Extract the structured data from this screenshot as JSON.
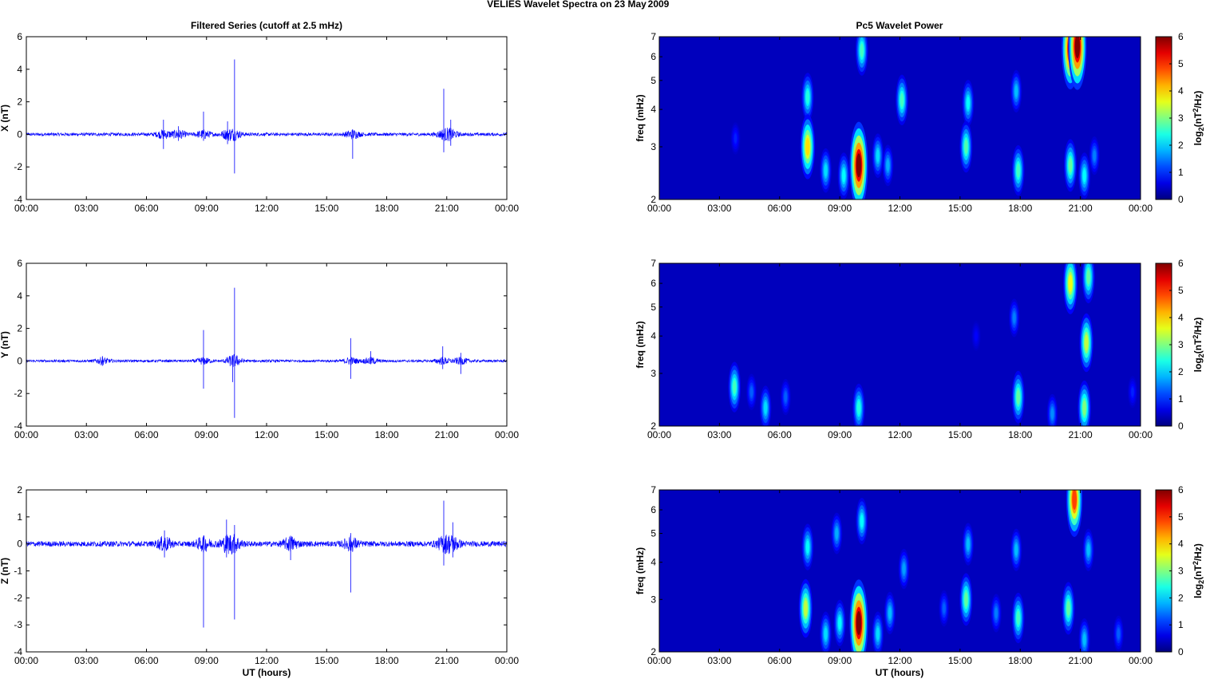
{
  "figure": {
    "title": "VELIES Wavelet Spectra on 23 May",
    "year": "2009",
    "left_title": "Filtered Series (cutoff at 2.5 mHz)",
    "right_title": "Pc5 Wavelet Power",
    "xlabel": "UT (hours)",
    "freq_label": "freq (mHz)",
    "cbar_label_base": "log",
    "cbar_label_sub": "2",
    "cbar_label_rest": "(nT",
    "cbar_label_sup": "2",
    "cbar_label_end": "/Hz)"
  },
  "colors": {
    "line": "#0000ff",
    "axis": "#000000",
    "background_power": "#00008f"
  },
  "chart_data": [
    {
      "type": "line",
      "panel": "X filtered series",
      "ylabel": "X (nT)",
      "xlim": [
        0,
        24
      ],
      "ylim": [
        -4,
        6
      ],
      "xticks": [
        "00:00",
        "03:00",
        "06:00",
        "09:00",
        "12:00",
        "15:00",
        "18:00",
        "21:00",
        "00:00"
      ],
      "yticks": [
        -4,
        -2,
        0,
        2,
        4,
        6
      ],
      "series": [
        {
          "baseline_amplitude": 0.1,
          "events": [
            {
              "t": 6.85,
              "min": -0.9,
              "max": 0.9
            },
            {
              "t": 7.6,
              "min": -0.4,
              "max": 0.5
            },
            {
              "t": 8.85,
              "min": -0.4,
              "max": 1.4
            },
            {
              "t": 10.05,
              "min": -0.6,
              "max": 0.8
            },
            {
              "t": 10.4,
              "min": -2.4,
              "max": 4.6
            },
            {
              "t": 16.3,
              "min": -1.5,
              "max": 0.3
            },
            {
              "t": 20.85,
              "min": -1.1,
              "max": 2.8
            },
            {
              "t": 21.2,
              "min": -0.7,
              "max": 0.9
            }
          ]
        }
      ]
    },
    {
      "type": "line",
      "panel": "Y filtered series",
      "ylabel": "Y (nT)",
      "xlim": [
        0,
        24
      ],
      "ylim": [
        -4,
        6
      ],
      "xticks": [
        "00:00",
        "03:00",
        "06:00",
        "09:00",
        "12:00",
        "15:00",
        "18:00",
        "21:00",
        "00:00"
      ],
      "yticks": [
        -4,
        -2,
        0,
        2,
        4,
        6
      ],
      "series": [
        {
          "baseline_amplitude": 0.08,
          "events": [
            {
              "t": 3.8,
              "min": -0.3,
              "max": 0.3
            },
            {
              "t": 8.85,
              "min": -1.7,
              "max": 1.9
            },
            {
              "t": 10.3,
              "min": -1.3,
              "max": 0.3
            },
            {
              "t": 10.4,
              "min": -3.5,
              "max": 4.5
            },
            {
              "t": 16.2,
              "min": -1.1,
              "max": 1.4
            },
            {
              "t": 17.2,
              "min": -0.2,
              "max": 0.6
            },
            {
              "t": 20.8,
              "min": -0.5,
              "max": 0.9
            },
            {
              "t": 21.7,
              "min": -0.8,
              "max": 0.5
            }
          ]
        }
      ]
    },
    {
      "type": "line",
      "panel": "Z filtered series",
      "ylabel": "Z (nT)",
      "xlim": [
        0,
        24
      ],
      "ylim": [
        -4,
        2
      ],
      "xticks": [
        "00:00",
        "03:00",
        "06:00",
        "09:00",
        "12:00",
        "15:00",
        "18:00",
        "21:00",
        "00:00"
      ],
      "yticks": [
        -4,
        -3,
        -2,
        -1,
        0,
        1,
        2
      ],
      "series": [
        {
          "baseline_amplitude": 0.1,
          "events": [
            {
              "t": 6.9,
              "min": -0.5,
              "max": 0.5
            },
            {
              "t": 8.85,
              "min": -3.1,
              "max": 0.3
            },
            {
              "t": 10.0,
              "min": -0.5,
              "max": 0.9
            },
            {
              "t": 10.4,
              "min": -2.8,
              "max": 0.7
            },
            {
              "t": 13.2,
              "min": -0.6,
              "max": 0.3
            },
            {
              "t": 16.2,
              "min": -1.8,
              "max": 0.4
            },
            {
              "t": 20.85,
              "min": -0.8,
              "max": 1.6
            },
            {
              "t": 21.3,
              "min": -0.5,
              "max": 0.8
            }
          ]
        }
      ]
    },
    {
      "type": "heatmap",
      "panel": "X wavelet power",
      "ylabel": "freq (mHz)",
      "yscale": "log",
      "xlim": [
        0,
        24
      ],
      "ylim": [
        2,
        7
      ],
      "clim": [
        0,
        6
      ],
      "xticks": [
        "00:00",
        "03:00",
        "06:00",
        "09:00",
        "12:00",
        "15:00",
        "18:00",
        "21:00",
        "00:00"
      ],
      "yticks": [
        2,
        3,
        4,
        5,
        6,
        7
      ],
      "cbar_ticks": [
        0,
        1,
        2,
        3,
        4,
        5,
        6
      ],
      "blobs": [
        {
          "t": 7.4,
          "f": 3.0,
          "p": 3.8
        },
        {
          "t": 7.4,
          "f": 4.4,
          "p": 2.2
        },
        {
          "t": 8.3,
          "f": 2.5,
          "p": 1.8
        },
        {
          "t": 9.2,
          "f": 2.4,
          "p": 2.0
        },
        {
          "t": 9.95,
          "f": 2.6,
          "p": 6.0
        },
        {
          "t": 10.1,
          "f": 6.3,
          "p": 2.4
        },
        {
          "t": 10.9,
          "f": 2.8,
          "p": 1.8
        },
        {
          "t": 11.4,
          "f": 2.6,
          "p": 1.5
        },
        {
          "t": 12.1,
          "f": 4.3,
          "p": 2.4
        },
        {
          "t": 15.3,
          "f": 3.0,
          "p": 2.5
        },
        {
          "t": 15.4,
          "f": 4.2,
          "p": 2.0
        },
        {
          "t": 17.9,
          "f": 2.5,
          "p": 2.4
        },
        {
          "t": 17.8,
          "f": 4.6,
          "p": 1.6
        },
        {
          "t": 20.5,
          "f": 2.6,
          "p": 2.6
        },
        {
          "t": 20.5,
          "f": 6.4,
          "p": 5.5
        },
        {
          "t": 20.85,
          "f": 6.5,
          "p": 6.0
        },
        {
          "t": 21.2,
          "f": 2.4,
          "p": 2.0
        },
        {
          "t": 21.7,
          "f": 2.8,
          "p": 1.2
        },
        {
          "t": 3.8,
          "f": 3.2,
          "p": 0.6
        }
      ]
    },
    {
      "type": "heatmap",
      "panel": "Y wavelet power",
      "ylabel": "freq (mHz)",
      "yscale": "log",
      "xlim": [
        0,
        24
      ],
      "ylim": [
        2,
        7
      ],
      "clim": [
        0,
        6
      ],
      "xticks": [
        "00:00",
        "03:00",
        "06:00",
        "09:00",
        "12:00",
        "15:00",
        "18:00",
        "21:00",
        "00:00"
      ],
      "yticks": [
        2,
        3,
        4,
        5,
        6,
        7
      ],
      "cbar_ticks": [
        0,
        1,
        2,
        3,
        4,
        5,
        6
      ],
      "blobs": [
        {
          "t": 3.75,
          "f": 2.7,
          "p": 2.4
        },
        {
          "t": 4.6,
          "f": 2.6,
          "p": 1.0
        },
        {
          "t": 5.3,
          "f": 2.3,
          "p": 1.8
        },
        {
          "t": 6.3,
          "f": 2.5,
          "p": 1.0
        },
        {
          "t": 9.95,
          "f": 2.3,
          "p": 2.2
        },
        {
          "t": 15.8,
          "f": 4.0,
          "p": 0.4
        },
        {
          "t": 17.9,
          "f": 2.5,
          "p": 2.6
        },
        {
          "t": 17.7,
          "f": 4.6,
          "p": 1.2
        },
        {
          "t": 19.6,
          "f": 2.2,
          "p": 1.3
        },
        {
          "t": 20.5,
          "f": 6.0,
          "p": 3.5
        },
        {
          "t": 21.2,
          "f": 2.3,
          "p": 2.8
        },
        {
          "t": 21.3,
          "f": 3.8,
          "p": 3.2
        },
        {
          "t": 21.4,
          "f": 6.3,
          "p": 2.6
        },
        {
          "t": 23.6,
          "f": 2.6,
          "p": 0.6
        }
      ]
    },
    {
      "type": "heatmap",
      "panel": "Z wavelet power",
      "ylabel": "freq (mHz)",
      "yscale": "log",
      "xlim": [
        0,
        24
      ],
      "ylim": [
        2,
        7
      ],
      "clim": [
        0,
        6
      ],
      "xticks": [
        "00:00",
        "03:00",
        "06:00",
        "09:00",
        "12:00",
        "15:00",
        "18:00",
        "21:00",
        "00:00"
      ],
      "yticks": [
        2,
        3,
        4,
        5,
        6,
        7
      ],
      "cbar_ticks": [
        0,
        1,
        2,
        3,
        4,
        5,
        6
      ],
      "blobs": [
        {
          "t": 7.3,
          "f": 2.8,
          "p": 3.2
        },
        {
          "t": 7.4,
          "f": 4.5,
          "p": 2.0
        },
        {
          "t": 8.3,
          "f": 2.3,
          "p": 1.8
        },
        {
          "t": 8.85,
          "f": 5.0,
          "p": 1.5
        },
        {
          "t": 9.0,
          "f": 2.5,
          "p": 2.0
        },
        {
          "t": 9.95,
          "f": 2.5,
          "p": 6.0
        },
        {
          "t": 10.1,
          "f": 5.5,
          "p": 2.0
        },
        {
          "t": 10.9,
          "f": 2.3,
          "p": 1.8
        },
        {
          "t": 11.5,
          "f": 2.7,
          "p": 1.6
        },
        {
          "t": 12.2,
          "f": 3.8,
          "p": 1.4
        },
        {
          "t": 14.2,
          "f": 2.8,
          "p": 1.0
        },
        {
          "t": 15.3,
          "f": 3.0,
          "p": 2.6
        },
        {
          "t": 15.4,
          "f": 4.6,
          "p": 1.6
        },
        {
          "t": 16.8,
          "f": 2.7,
          "p": 1.2
        },
        {
          "t": 17.9,
          "f": 2.6,
          "p": 2.4
        },
        {
          "t": 17.8,
          "f": 4.4,
          "p": 1.6
        },
        {
          "t": 20.4,
          "f": 2.8,
          "p": 2.6
        },
        {
          "t": 20.7,
          "f": 6.5,
          "p": 4.8
        },
        {
          "t": 21.2,
          "f": 2.2,
          "p": 1.6
        },
        {
          "t": 21.4,
          "f": 4.4,
          "p": 1.6
        },
        {
          "t": 22.9,
          "f": 2.3,
          "p": 1.0
        }
      ]
    }
  ]
}
